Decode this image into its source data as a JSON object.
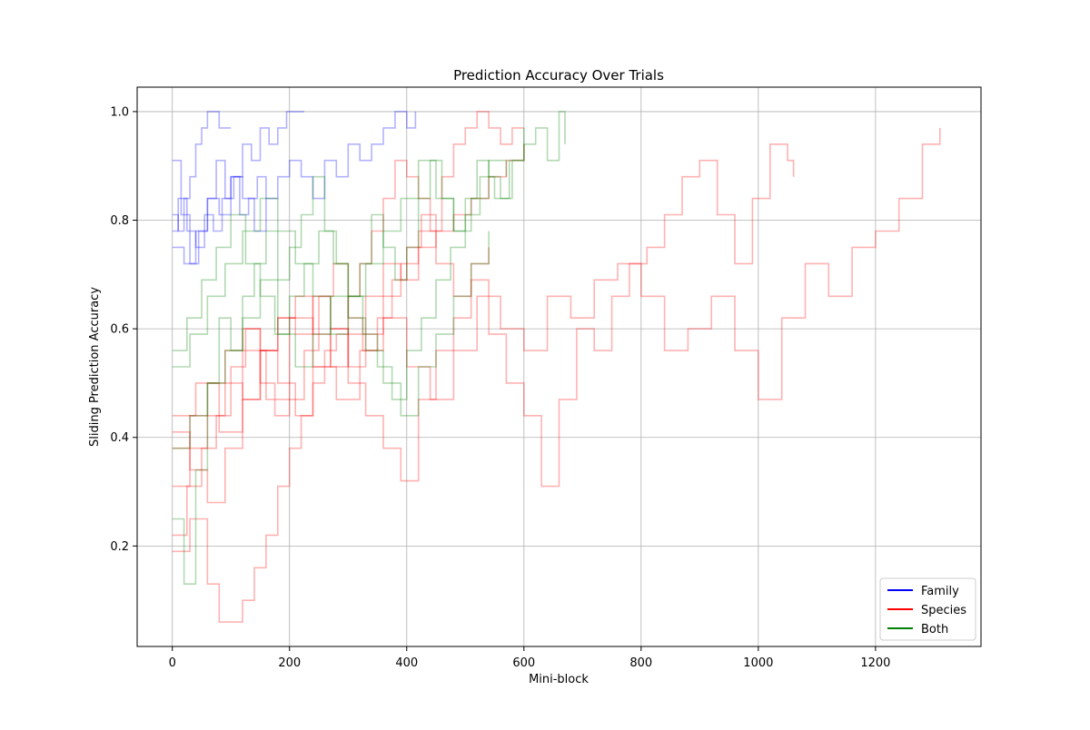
{
  "chart_data": {
    "type": "line",
    "title": "Prediction Accuracy Over Trials",
    "xlabel": "Mini-block",
    "ylabel": "Sliding Prediction Accuracy",
    "xlim": [
      -60,
      1380
    ],
    "ylim": [
      0.015,
      1.045
    ],
    "xticks": [
      0,
      200,
      400,
      600,
      800,
      1000,
      1200
    ],
    "yticks": [
      0.2,
      0.4,
      0.6,
      0.8,
      1.0
    ],
    "xtick_labels": [
      "0",
      "200",
      "400",
      "600",
      "800",
      "1000",
      "1200"
    ],
    "ytick_labels": [
      "0.2",
      "0.4",
      "0.6",
      "0.8",
      "1.0"
    ],
    "grid": true,
    "legend_position": "lower right",
    "legend": [
      {
        "label": "Family",
        "color": "#0000ff"
      },
      {
        "label": "Species",
        "color": "#ff0000"
      },
      {
        "label": "Both",
        "color": "#008000"
      }
    ],
    "series_alpha": 0.3,
    "series": [
      {
        "group": "Family",
        "color": "#0000ff",
        "x": [
          0,
          10,
          20,
          30,
          40,
          50,
          60,
          70,
          80,
          90,
          100
        ],
        "y": [
          0.81,
          0.78,
          0.84,
          0.88,
          0.94,
          0.97,
          1.0,
          1.0,
          0.97,
          0.97,
          0.97
        ]
      },
      {
        "group": "Family",
        "color": "#0000ff",
        "x": [
          0,
          15,
          30,
          45,
          60,
          75,
          90,
          105,
          120,
          135,
          150,
          165,
          180,
          195,
          210,
          225
        ],
        "y": [
          0.91,
          0.81,
          0.72,
          0.78,
          0.84,
          0.91,
          0.84,
          0.88,
          0.94,
          0.91,
          0.97,
          0.94,
          0.97,
          1.0,
          1.0,
          1.0
        ]
      },
      {
        "group": "Family",
        "color": "#0000ff",
        "x": [
          0,
          20,
          40,
          60,
          80,
          100,
          120,
          140,
          160,
          180,
          200,
          220,
          240,
          260,
          280,
          300,
          320,
          340,
          360,
          380,
          400,
          415
        ],
        "y": [
          0.75,
          0.72,
          0.78,
          0.84,
          0.81,
          0.88,
          0.84,
          0.78,
          0.84,
          0.88,
          0.91,
          0.88,
          0.84,
          0.91,
          0.88,
          0.94,
          0.91,
          0.94,
          0.97,
          1.0,
          0.97,
          1.0
        ]
      },
      {
        "group": "Family",
        "color": "#0000ff",
        "x": [
          0,
          10,
          25,
          40,
          55,
          70,
          85,
          100,
          115,
          130,
          145,
          160
        ],
        "y": [
          0.78,
          0.84,
          0.78,
          0.75,
          0.81,
          0.78,
          0.84,
          0.88,
          0.81,
          0.84,
          0.88,
          0.84
        ]
      },
      {
        "group": "Species",
        "color": "#ff0000",
        "x": [
          0,
          30,
          60,
          80,
          100,
          120,
          140,
          160,
          180,
          200,
          220,
          240,
          260,
          280,
          300,
          320,
          340,
          360,
          380,
          400,
          420,
          440,
          460,
          480,
          500,
          520,
          540,
          560,
          580,
          600
        ],
        "y": [
          0.19,
          0.25,
          0.13,
          0.06,
          0.06,
          0.1,
          0.16,
          0.22,
          0.31,
          0.38,
          0.44,
          0.5,
          0.56,
          0.59,
          0.66,
          0.72,
          0.78,
          0.84,
          0.91,
          0.88,
          0.84,
          0.78,
          0.88,
          0.94,
          0.97,
          1.0,
          0.97,
          0.94,
          0.97,
          0.97
        ]
      },
      {
        "group": "Species",
        "color": "#ff0000",
        "x": [
          0,
          30,
          60,
          90,
          120,
          150,
          180,
          210,
          240,
          270,
          300,
          330,
          360,
          390,
          420,
          450,
          480,
          510,
          540,
          570,
          600,
          630,
          660,
          690,
          720,
          750,
          780,
          810,
          840,
          870,
          900,
          930,
          960,
          990,
          1020,
          1050,
          1060
        ],
        "y": [
          0.41,
          0.34,
          0.28,
          0.38,
          0.47,
          0.56,
          0.5,
          0.44,
          0.53,
          0.6,
          0.5,
          0.44,
          0.38,
          0.32,
          0.47,
          0.56,
          0.62,
          0.69,
          0.59,
          0.5,
          0.44,
          0.31,
          0.47,
          0.6,
          0.56,
          0.66,
          0.72,
          0.75,
          0.81,
          0.88,
          0.91,
          0.81,
          0.72,
          0.84,
          0.94,
          0.91,
          0.88
        ]
      },
      {
        "group": "Species",
        "color": "#ff0000",
        "x": [
          0,
          40,
          80,
          120,
          160,
          200,
          240,
          280,
          320,
          360,
          400,
          440,
          480,
          520,
          560,
          600,
          640,
          680,
          720,
          760,
          800,
          840,
          880,
          920,
          960,
          1000,
          1040,
          1080,
          1120,
          1160,
          1200,
          1240,
          1280,
          1310
        ],
        "y": [
          0.44,
          0.5,
          0.41,
          0.56,
          0.47,
          0.62,
          0.53,
          0.47,
          0.56,
          0.62,
          0.53,
          0.47,
          0.56,
          0.66,
          0.6,
          0.56,
          0.66,
          0.62,
          0.69,
          0.72,
          0.66,
          0.56,
          0.6,
          0.66,
          0.56,
          0.47,
          0.62,
          0.72,
          0.66,
          0.75,
          0.78,
          0.84,
          0.94,
          0.97
        ]
      },
      {
        "group": "Species",
        "color": "#ff0000",
        "x": [
          0,
          30,
          60,
          90,
          120,
          150,
          180,
          210,
          240,
          270,
          300,
          330,
          360,
          390,
          420,
          450,
          480,
          510,
          540,
          570,
          600
        ],
        "y": [
          0.38,
          0.44,
          0.5,
          0.56,
          0.6,
          0.56,
          0.62,
          0.66,
          0.59,
          0.53,
          0.59,
          0.66,
          0.72,
          0.69,
          0.75,
          0.78,
          0.81,
          0.84,
          0.88,
          0.91,
          0.94
        ]
      },
      {
        "group": "Species",
        "color": "#ff0000",
        "x": [
          0,
          30,
          60,
          90,
          120,
          150,
          180,
          210,
          240,
          270,
          300,
          330,
          360,
          390,
          420,
          450,
          480,
          510,
          540
        ],
        "y": [
          0.31,
          0.38,
          0.44,
          0.5,
          0.47,
          0.56,
          0.62,
          0.59,
          0.66,
          0.6,
          0.53,
          0.59,
          0.66,
          0.72,
          0.78,
          0.72,
          0.66,
          0.72,
          0.75
        ]
      },
      {
        "group": "Species",
        "color": "#ff0000",
        "x": [
          0,
          25,
          50,
          75,
          100,
          125,
          150,
          175,
          200,
          225,
          250,
          275,
          300,
          325,
          350,
          375,
          400,
          425,
          450
        ],
        "y": [
          0.22,
          0.31,
          0.38,
          0.44,
          0.53,
          0.6,
          0.5,
          0.44,
          0.47,
          0.56,
          0.66,
          0.72,
          0.62,
          0.56,
          0.62,
          0.69,
          0.75,
          0.81,
          0.78
        ]
      },
      {
        "group": "Both",
        "color": "#008000",
        "x": [
          0,
          20,
          40,
          60,
          80,
          100,
          120,
          140,
          160,
          180,
          200,
          220,
          240,
          260,
          280,
          300,
          320,
          340,
          360,
          380,
          400,
          420,
          440,
          460,
          480,
          500,
          520,
          540,
          560,
          580,
          600,
          620,
          640,
          660,
          670
        ],
        "y": [
          0.25,
          0.13,
          0.34,
          0.5,
          0.62,
          0.56,
          0.66,
          0.72,
          0.78,
          0.69,
          0.75,
          0.81,
          0.88,
          0.78,
          0.72,
          0.66,
          0.72,
          0.81,
          0.75,
          0.69,
          0.75,
          0.84,
          0.91,
          0.84,
          0.78,
          0.84,
          0.91,
          0.88,
          0.84,
          0.91,
          0.94,
          0.97,
          0.91,
          1.0,
          0.94
        ]
      },
      {
        "group": "Both",
        "color": "#008000",
        "x": [
          0,
          25,
          50,
          75,
          100,
          125,
          150,
          175,
          200,
          225,
          250,
          275,
          300,
          325,
          350,
          375,
          400,
          425,
          450,
          475,
          500,
          525,
          550,
          575,
          600
        ],
        "y": [
          0.56,
          0.62,
          0.69,
          0.75,
          0.81,
          0.72,
          0.66,
          0.59,
          0.66,
          0.72,
          0.78,
          0.72,
          0.66,
          0.59,
          0.53,
          0.47,
          0.56,
          0.62,
          0.69,
          0.75,
          0.81,
          0.88,
          0.84,
          0.91,
          0.97
        ]
      },
      {
        "group": "Both",
        "color": "#008000",
        "x": [
          0,
          30,
          60,
          90,
          120,
          150,
          180,
          210,
          240,
          270,
          300,
          330,
          360,
          390,
          420,
          450,
          480,
          510,
          540,
          570
        ],
        "y": [
          0.53,
          0.59,
          0.66,
          0.72,
          0.78,
          0.84,
          0.78,
          0.72,
          0.66,
          0.59,
          0.66,
          0.72,
          0.78,
          0.84,
          0.91,
          0.84,
          0.78,
          0.84,
          0.91,
          0.88
        ]
      },
      {
        "group": "Both",
        "color": "#008000",
        "x": [
          0,
          30,
          60,
          90,
          120,
          150,
          180,
          210,
          240,
          270,
          300,
          330,
          360,
          390,
          420,
          450,
          480,
          510,
          540
        ],
        "y": [
          0.38,
          0.44,
          0.5,
          0.56,
          0.62,
          0.69,
          0.59,
          0.53,
          0.59,
          0.66,
          0.62,
          0.56,
          0.5,
          0.44,
          0.53,
          0.59,
          0.66,
          0.72,
          0.78
        ]
      }
    ]
  }
}
